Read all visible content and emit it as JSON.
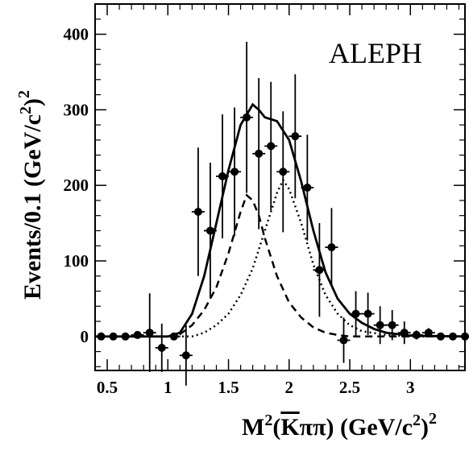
{
  "chart_data": {
    "type": "scatter",
    "xlabel_parts": {
      "m": "M",
      "sq": "2",
      "open": "(",
      "k": "K",
      "pipi": "ππ",
      "close": ")",
      "unit": " (GeV/c",
      "unit_sq": "2",
      "unit_close": ")",
      "unit_outer_sq": "2"
    },
    "ylabel_parts": {
      "main": "Events/0.1 (GeV/c",
      "sq": "2",
      "close": ")",
      "outer_sq": "2"
    },
    "annotation": "ALEPH",
    "xlim": [
      0.4,
      3.45
    ],
    "ylim": [
      -45,
      440
    ],
    "x_ticks": [
      {
        "value": 0.5,
        "label": "0.5"
      },
      {
        "value": 1,
        "label": "1"
      },
      {
        "value": 1.5,
        "label": "1.5"
      },
      {
        "value": 2,
        "label": "2"
      },
      {
        "value": 2.5,
        "label": "2.5"
      },
      {
        "value": 3,
        "label": "3"
      }
    ],
    "y_ticks": [
      {
        "value": 0,
        "label": "0"
      },
      {
        "value": 100,
        "label": "100"
      },
      {
        "value": 200,
        "label": "200"
      },
      {
        "value": 300,
        "label": "300"
      },
      {
        "value": 400,
        "label": "400"
      }
    ],
    "data_points": [
      {
        "x": 0.45,
        "y": 0,
        "err": 0
      },
      {
        "x": 0.55,
        "y": 0,
        "err": 0
      },
      {
        "x": 0.65,
        "y": 0,
        "err": 0
      },
      {
        "x": 0.75,
        "y": 2,
        "err": 3
      },
      {
        "x": 0.85,
        "y": 5,
        "err": 52
      },
      {
        "x": 0.95,
        "y": -15,
        "err": 32
      },
      {
        "x": 1.05,
        "y": 0,
        "err": 5
      },
      {
        "x": 1.15,
        "y": -25,
        "err": 40
      },
      {
        "x": 1.25,
        "y": 165,
        "err": 85
      },
      {
        "x": 1.35,
        "y": 140,
        "err": 90
      },
      {
        "x": 1.45,
        "y": 212,
        "err": 82
      },
      {
        "x": 1.55,
        "y": 218,
        "err": 85
      },
      {
        "x": 1.65,
        "y": 290,
        "err": 100
      },
      {
        "x": 1.75,
        "y": 242,
        "err": 100
      },
      {
        "x": 1.85,
        "y": 252,
        "err": 85
      },
      {
        "x": 1.95,
        "y": 218,
        "err": 80
      },
      {
        "x": 2.05,
        "y": 265,
        "err": 82
      },
      {
        "x": 2.15,
        "y": 197,
        "err": 70
      },
      {
        "x": 2.25,
        "y": 88,
        "err": 62
      },
      {
        "x": 2.35,
        "y": 118,
        "err": 52
      },
      {
        "x": 2.45,
        "y": -5,
        "err": 30
      },
      {
        "x": 2.55,
        "y": 30,
        "err": 30
      },
      {
        "x": 2.65,
        "y": 30,
        "err": 28
      },
      {
        "x": 2.75,
        "y": 15,
        "err": 25
      },
      {
        "x": 2.85,
        "y": 15,
        "err": 20
      },
      {
        "x": 2.95,
        "y": 5,
        "err": 15
      },
      {
        "x": 3.05,
        "y": 2,
        "err": 6
      },
      {
        "x": 3.15,
        "y": 5,
        "err": 6
      },
      {
        "x": 3.25,
        "y": 0,
        "err": 3
      },
      {
        "x": 3.35,
        "y": 0,
        "err": 3
      },
      {
        "x": 3.45,
        "y": 0,
        "err": 3
      }
    ],
    "curves": [
      {
        "style": "solid",
        "points": [
          [
            0.4,
            0
          ],
          [
            1.0,
            0
          ],
          [
            1.1,
            5
          ],
          [
            1.2,
            30
          ],
          [
            1.3,
            80
          ],
          [
            1.4,
            150
          ],
          [
            1.5,
            220
          ],
          [
            1.6,
            280
          ],
          [
            1.7,
            307
          ],
          [
            1.75,
            300
          ],
          [
            1.8,
            290
          ],
          [
            1.9,
            285
          ],
          [
            2.0,
            260
          ],
          [
            2.1,
            205
          ],
          [
            2.2,
            140
          ],
          [
            2.3,
            85
          ],
          [
            2.4,
            50
          ],
          [
            2.5,
            30
          ],
          [
            2.6,
            18
          ],
          [
            2.7,
            10
          ],
          [
            2.8,
            5
          ],
          [
            3.0,
            1
          ],
          [
            3.45,
            0
          ]
        ]
      },
      {
        "style": "dashed",
        "points": [
          [
            0.4,
            0
          ],
          [
            1.0,
            0
          ],
          [
            1.1,
            3
          ],
          [
            1.2,
            15
          ],
          [
            1.3,
            35
          ],
          [
            1.4,
            65
          ],
          [
            1.5,
            110
          ],
          [
            1.6,
            165
          ],
          [
            1.65,
            187
          ],
          [
            1.7,
            180
          ],
          [
            1.75,
            160
          ],
          [
            1.8,
            130
          ],
          [
            1.9,
            80
          ],
          [
            2.0,
            45
          ],
          [
            2.1,
            25
          ],
          [
            2.2,
            12
          ],
          [
            2.3,
            5
          ],
          [
            2.4,
            2
          ],
          [
            2.5,
            0
          ],
          [
            3.45,
            0
          ]
        ]
      },
      {
        "style": "dotted",
        "points": [
          [
            0.4,
            0
          ],
          [
            1.2,
            0
          ],
          [
            1.3,
            5
          ],
          [
            1.4,
            15
          ],
          [
            1.5,
            30
          ],
          [
            1.6,
            55
          ],
          [
            1.7,
            90
          ],
          [
            1.8,
            140
          ],
          [
            1.9,
            190
          ],
          [
            1.95,
            207
          ],
          [
            2.0,
            195
          ],
          [
            2.1,
            150
          ],
          [
            2.2,
            95
          ],
          [
            2.3,
            55
          ],
          [
            2.4,
            30
          ],
          [
            2.5,
            15
          ],
          [
            2.6,
            7
          ],
          [
            2.8,
            2
          ],
          [
            3.0,
            0
          ],
          [
            3.45,
            0
          ]
        ]
      }
    ]
  }
}
